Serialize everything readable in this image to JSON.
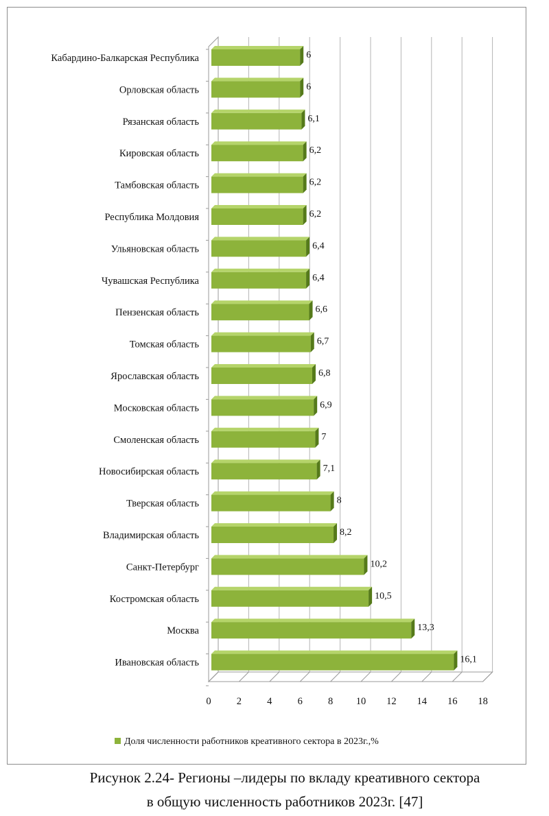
{
  "chart_data": {
    "type": "bar",
    "orientation": "horizontal",
    "categories": [
      "Кабардино-Балкарская Республика",
      "Орловская область",
      "Рязанская область",
      "Кировская область",
      "Тамбовская область",
      "Республика Молдовия",
      "Ульяновская область",
      "Чувашская Республика",
      "Пензенская область",
      "Томская область",
      "Ярославская область",
      "Московская область",
      "Смоленская область",
      "Новосибирская область",
      "Тверская область",
      "Владимирская область",
      "Санкт-Петербург",
      "Костромская область",
      "Москва",
      "Ивановская область"
    ],
    "values": [
      6,
      6,
      6.1,
      6.2,
      6.2,
      6.2,
      6.4,
      6.4,
      6.6,
      6.7,
      6.8,
      6.9,
      7,
      7.1,
      8,
      8.2,
      10.2,
      10.5,
      13.3,
      16.1
    ],
    "value_labels": [
      "6",
      "6",
      "6,1",
      "6,2",
      "6,2",
      "6,2",
      "6,4",
      "6,4",
      "6,6",
      "6,7",
      "6,8",
      "6,9",
      "7",
      "7,1",
      "8",
      "8,2",
      "10,2",
      "10,5",
      "13,3",
      "16,1"
    ],
    "x_ticks": [
      "0",
      "2",
      "4",
      "6",
      "8",
      "10",
      "12",
      "14",
      "16",
      "18"
    ],
    "xlim": [
      0,
      18
    ],
    "grid": true,
    "legend_position": "bottom",
    "series_name": "Доля численности работников креативного сектора в 2023г.,%",
    "bar_color": "#8db33b",
    "bar_color_dark": "#557a1a"
  },
  "caption": {
    "line1": "Рисунок 2.24- Регионы –лидеры по вкладу креативного сектора",
    "line2": "в общую численность работников 2023г. [47]"
  }
}
